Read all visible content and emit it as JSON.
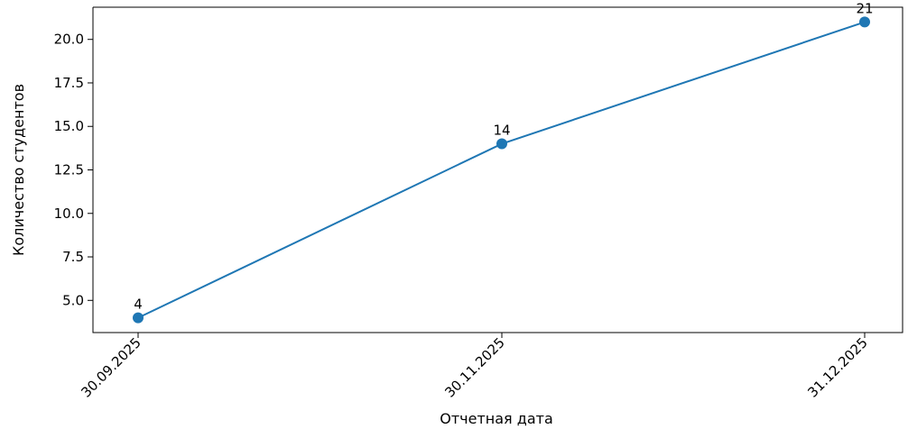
{
  "chart_data": {
    "type": "line",
    "title": "",
    "xlabel": "Отчетная дата",
    "ylabel": "Количество студентов",
    "categories": [
      "30.09.2025",
      "30.11.2025",
      "31.12.2025"
    ],
    "series": [
      {
        "values": [
          4,
          14,
          21
        ],
        "color": "#1f77b4",
        "marker": "circle"
      }
    ],
    "data_labels": [
      "4",
      "14",
      "21"
    ],
    "y_ticks": [
      5.0,
      7.5,
      10.0,
      12.5,
      15.0,
      17.5,
      20.0
    ],
    "y_tick_labels": [
      "5.0",
      "7.5",
      "10.0",
      "12.5",
      "15.0",
      "17.5",
      "20.0"
    ],
    "ylim": [
      3.15,
      21.85
    ],
    "grid": false,
    "legend": "none",
    "x_tick_rotation": "45°"
  }
}
